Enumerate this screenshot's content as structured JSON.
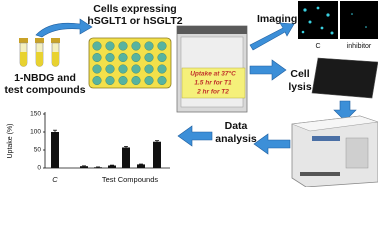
{
  "cells_label": [
    "Cells expressing",
    "hSGLT1 or hSGLT2"
  ],
  "compounds_label": [
    "1-NBDG and",
    "test compounds"
  ],
  "incubator_label": [
    "Uptake at 37°C",
    "1.5 hr for T1",
    "2 hr for T2"
  ],
  "steps": {
    "imaging": "Imaging",
    "cell_lysis": [
      "Cell",
      "lysis"
    ],
    "data_analysis": [
      "Data",
      "analysis"
    ]
  },
  "image_labels": [
    "C",
    "inhibitor"
  ],
  "chart_data": {
    "type": "bar",
    "y_label": "Uptake (%)",
    "categories": [
      "C",
      null,
      null,
      null,
      null,
      null,
      null
    ],
    "group_label": "Test Compounds",
    "values": [
      100,
      5,
      2,
      7,
      57,
      10,
      73
    ],
    "errors": [
      5,
      1,
      1,
      1,
      3,
      1,
      3
    ],
    "color": "#111111",
    "ylim": [
      0,
      150
    ],
    "yticks": [
      0,
      50,
      100,
      150
    ]
  }
}
